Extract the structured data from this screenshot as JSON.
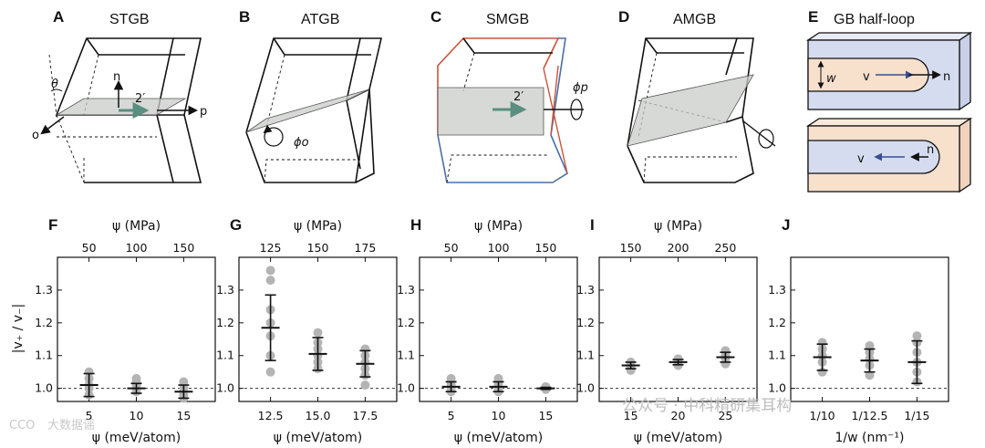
{
  "figure": {
    "top_panels": [
      {
        "label": "A",
        "title": "STGB"
      },
      {
        "label": "B",
        "title": "ATGB"
      },
      {
        "label": "C",
        "title": "SMGB"
      },
      {
        "label": "D",
        "title": "AMGB"
      },
      {
        "label": "E",
        "title": "GB half-loop"
      }
    ],
    "schematic_labels": {
      "theta": "θ",
      "n": "n",
      "p": "p",
      "o": "o",
      "two_prime": "2′",
      "phi_o": "ϕo",
      "phi_p": "ϕp",
      "w": "w",
      "v": "v"
    },
    "colors": {
      "plane": "#c9ccca",
      "arrow_teal": "#5a8f80",
      "crystal_red": "#c8553d",
      "crystal_blue": "#4a6fa5",
      "loop_blue": "#d6dcf0",
      "loop_peach": "#f7e0cc",
      "marker_gray": "#b4b4b4"
    },
    "y_axis_label": "|v₊ / v₋|",
    "watermark_text": "公众号 · 中科精研集耳构",
    "watermark_corner": "大数据谣",
    "watermark_corner_tag": "CCO"
  },
  "chart_data": [
    {
      "panel": "F",
      "type": "scatter",
      "xlabel": "ψ (meV/atom)",
      "x2label": "ψ (MPa)",
      "x_ticks": [
        "5",
        "10",
        "15"
      ],
      "x2_ticks": [
        "50",
        "100",
        "150"
      ],
      "ylim": [
        0.96,
        1.4
      ],
      "y_ticks": [
        "1.0",
        "1.1",
        "1.2",
        "1.3"
      ],
      "ref_line": 1.0,
      "series": [
        {
          "x": "5",
          "mean": 1.01,
          "err": 0.035,
          "points": [
            0.98,
            1.0,
            1.01,
            1.03,
            1.05
          ]
        },
        {
          "x": "10",
          "mean": 1.0,
          "err": 0.015,
          "points": [
            0.99,
            1.0,
            1.01,
            1.02,
            1.03
          ]
        },
        {
          "x": "15",
          "mean": 0.99,
          "err": 0.02,
          "points": [
            0.97,
            0.98,
            0.99,
            1.0,
            1.02
          ]
        }
      ]
    },
    {
      "panel": "G",
      "type": "scatter",
      "xlabel": "ψ (meV/atom)",
      "x2label": "ψ (MPa)",
      "x_ticks": [
        "12.5",
        "15.0",
        "17.5"
      ],
      "x2_ticks": [
        "125",
        "150",
        "175"
      ],
      "ylim": [
        0.96,
        1.4
      ],
      "y_ticks": [
        "1.0",
        "1.1",
        "1.2",
        "1.3"
      ],
      "ref_line": 1.0,
      "series": [
        {
          "x": "12.5",
          "mean": 1.185,
          "err": 0.1,
          "points": [
            1.05,
            1.1,
            1.16,
            1.2,
            1.24,
            1.33,
            1.36
          ]
        },
        {
          "x": "15.0",
          "mean": 1.105,
          "err": 0.05,
          "points": [
            1.06,
            1.08,
            1.1,
            1.12,
            1.14,
            1.17
          ]
        },
        {
          "x": "17.5",
          "mean": 1.075,
          "err": 0.04,
          "points": [
            1.01,
            1.04,
            1.06,
            1.08,
            1.1,
            1.12
          ]
        }
      ]
    },
    {
      "panel": "H",
      "type": "scatter",
      "xlabel": "ψ (meV/atom)",
      "x2label": "ψ (MPa)",
      "x_ticks": [
        "5",
        "10",
        "15"
      ],
      "x2_ticks": [
        "50",
        "100",
        "150"
      ],
      "ylim": [
        0.96,
        1.4
      ],
      "y_ticks": [
        "1.0",
        "1.1",
        "1.2",
        "1.3"
      ],
      "ref_line": 1.0,
      "series": [
        {
          "x": "5",
          "mean": 1.005,
          "err": 0.015,
          "points": [
            0.99,
            1.0,
            1.01,
            1.02,
            1.03
          ]
        },
        {
          "x": "10",
          "mean": 1.005,
          "err": 0.015,
          "points": [
            0.99,
            1.0,
            1.01,
            1.02,
            1.03
          ]
        },
        {
          "x": "15",
          "mean": 1.0,
          "err": 0.003,
          "points": [
            0.997,
            1.0,
            1.003,
            1.005
          ]
        }
      ]
    },
    {
      "panel": "I",
      "type": "scatter",
      "xlabel": "ψ (meV/atom)",
      "x2label": "ψ (MPa)",
      "x_ticks": [
        "15",
        "20",
        "25"
      ],
      "x2_ticks": [
        "150",
        "200",
        "250"
      ],
      "ylim": [
        0.96,
        1.4
      ],
      "y_ticks": [
        "1.0",
        "1.1",
        "1.2",
        "1.3"
      ],
      "ref_line": 1.0,
      "series": [
        {
          "x": "15",
          "mean": 1.07,
          "err": 0.01,
          "points": [
            1.055,
            1.065,
            1.07,
            1.08
          ]
        },
        {
          "x": "20",
          "mean": 1.08,
          "err": 0.008,
          "points": [
            1.07,
            1.075,
            1.08,
            1.09
          ]
        },
        {
          "x": "25",
          "mean": 1.095,
          "err": 0.015,
          "points": [
            1.075,
            1.09,
            1.1,
            1.115
          ]
        }
      ]
    },
    {
      "panel": "J",
      "type": "scatter",
      "xlabel": "1/w (nm⁻¹)",
      "x_ticks": [
        "1/10",
        "1/12.5",
        "1/15"
      ],
      "ylim": [
        0.96,
        1.4
      ],
      "y_ticks": [
        "1.0",
        "1.1",
        "1.2",
        "1.3"
      ],
      "ref_line": 1.0,
      "series": [
        {
          "x": "1/10",
          "mean": 1.095,
          "err": 0.04,
          "points": [
            1.05,
            1.08,
            1.1,
            1.12,
            1.14
          ]
        },
        {
          "x": "1/12.5",
          "mean": 1.085,
          "err": 0.035,
          "points": [
            1.04,
            1.07,
            1.09,
            1.11,
            1.13
          ]
        },
        {
          "x": "1/15",
          "mean": 1.08,
          "err": 0.065,
          "points": [
            1.02,
            1.05,
            1.08,
            1.11,
            1.14,
            1.16
          ]
        }
      ]
    }
  ]
}
